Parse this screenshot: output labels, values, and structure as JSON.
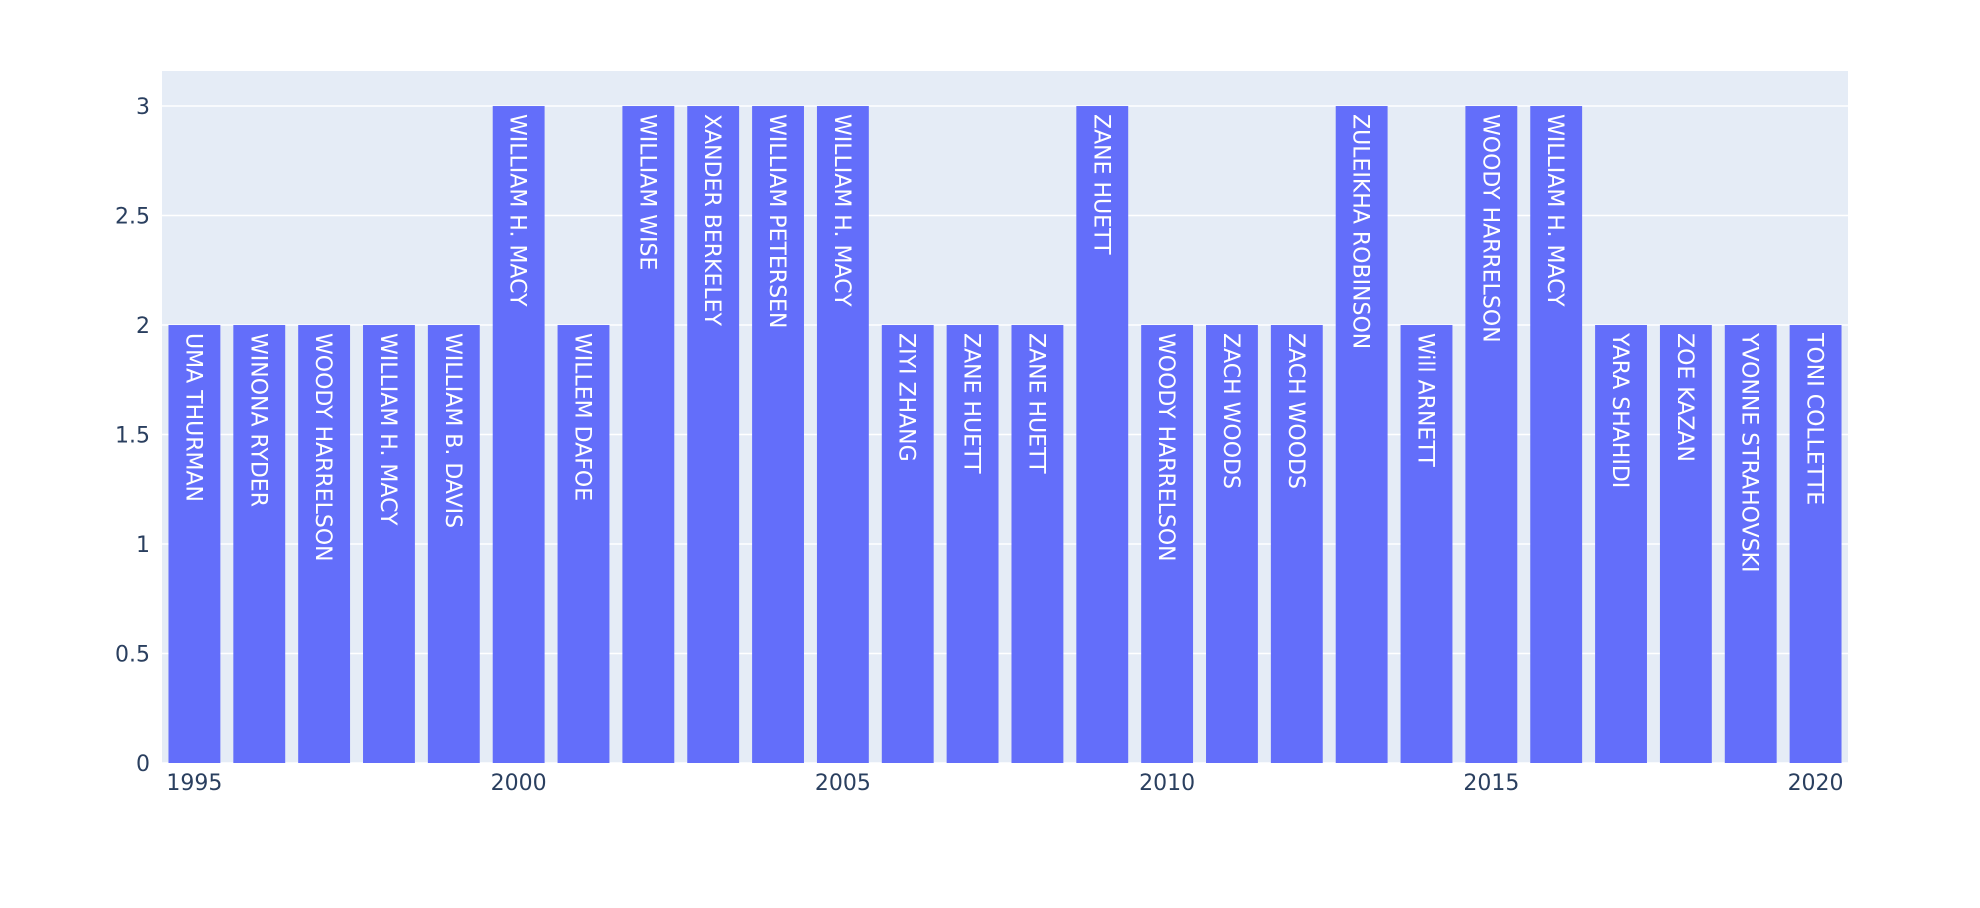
{
  "chart_data": {
    "type": "bar",
    "x": [
      1995,
      1996,
      1997,
      1998,
      1999,
      2000,
      2001,
      2002,
      2003,
      2004,
      2005,
      2006,
      2007,
      2008,
      2009,
      2010,
      2011,
      2012,
      2013,
      2014,
      2015,
      2016,
      2017,
      2018,
      2019,
      2020
    ],
    "values": [
      2,
      2,
      2,
      2,
      2,
      3,
      2,
      3,
      3,
      3,
      3,
      2,
      2,
      2,
      3,
      2,
      2,
      2,
      3,
      2,
      3,
      3,
      2,
      2,
      2,
      2
    ],
    "bar_labels": [
      "UMA THURMAN",
      "WINONA RYDER",
      "WOODY HARRELSON",
      "WILLIAM H. MACY",
      "WILLIAM B. DAVIS",
      "WILLIAM H. MACY",
      "WILLEM DAFOE",
      "WILLIAM WISE",
      "XANDER BERKELEY",
      "WILLIAM PETERSEN",
      "WILLIAM H. MACY",
      "ZIYI ZHANG",
      "ZANE HUETT",
      "ZANE HUETT",
      "ZANE HUETT",
      "WOODY HARRELSON",
      "ZACH WOODS",
      "ZACH WOODS",
      "ZULEIKHA ROBINSON",
      "Will ARNETT",
      "WOODY HARRELSON",
      "WILLIAM H. MACY",
      "YARA SHAHIDI",
      "ZOE KAZAN",
      "YVONNE STRAHOVSKI",
      "TONI COLLETTE"
    ],
    "x_ticks": [
      "1995",
      "2000",
      "2005",
      "2010",
      "2015",
      "2020"
    ],
    "y_ticks": [
      "0",
      "0.5",
      "1",
      "1.5",
      "2",
      "2.5",
      "3"
    ],
    "ylim": [
      0,
      3.16
    ],
    "xlim": [
      1994.5,
      2020.5
    ],
    "title": "",
    "xlabel": "",
    "ylabel": "",
    "grid": true,
    "colors": {
      "bar": "#636efa",
      "plot_bg": "#e5ecf6",
      "grid": "#ffffff",
      "tick_text": "#2a3f5f",
      "bar_text": "#ffffff"
    }
  }
}
